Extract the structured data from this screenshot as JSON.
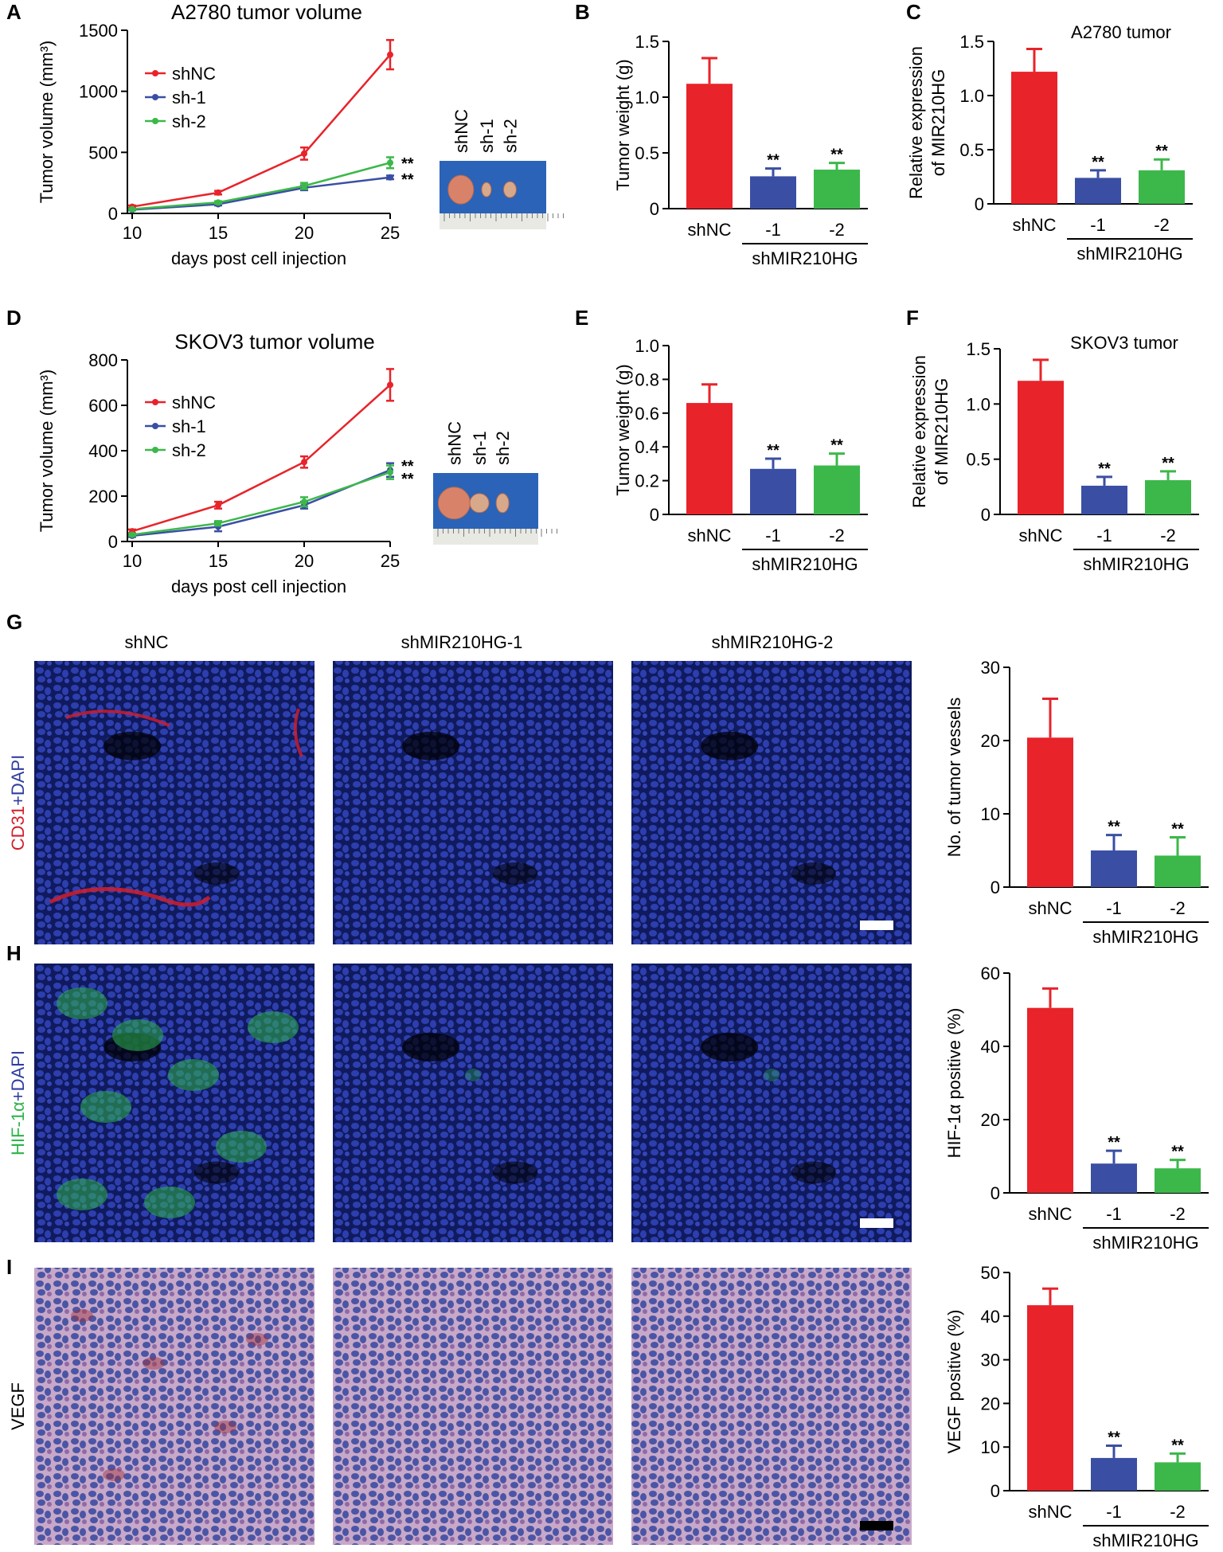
{
  "colors": {
    "shNC": "#e8232a",
    "sh1": "#3a4fa3",
    "sh2": "#3cb84a",
    "cd31": "#d21e2c",
    "hif": "#2db34a",
    "dapi": "#2f3da0"
  },
  "figure": {
    "panels": {
      "A": "A",
      "B": "B",
      "C": "C",
      "D": "D",
      "E": "E",
      "F": "F",
      "G": "G",
      "H": "H",
      "I": "I"
    },
    "tumor_photo_labels": [
      "shNC",
      "sh-1",
      "sh-2"
    ],
    "micro_column_titles": [
      "shNC",
      "shMIR210HG-1",
      "shMIR210HG-2"
    ],
    "micro_row_labels": {
      "G": [
        {
          "text": "CD31",
          "color": "#d21e2c"
        },
        {
          "text": "+DAPI",
          "color": "#2f3da0"
        }
      ],
      "H": [
        {
          "text": "HIF-1α",
          "color": "#2db34a"
        },
        {
          "text": "+DAPI",
          "color": "#2f3da0"
        }
      ],
      "I": [
        {
          "text": "VEGF",
          "color": "#000000"
        }
      ]
    },
    "micro_image_types": [
      "fluorescence-cd31",
      "fluorescence-hif",
      "ihc-vegf"
    ]
  },
  "chart_data": [
    {
      "panel": "A",
      "type": "line",
      "title": "A2780 tumor volume",
      "xlabel": "days post cell injection",
      "ylabel": "Tumor volume (mm³)",
      "x": [
        10,
        15,
        20,
        25
      ],
      "xticks": [
        "10",
        "15",
        "20",
        "25"
      ],
      "ylim": [
        0,
        1500
      ],
      "yticks": [
        "0",
        "500",
        "1000",
        "1500"
      ],
      "series": [
        {
          "name": "shNC",
          "color": "#e8232a",
          "values": [
            55,
            170,
            490,
            1300
          ],
          "errors": [
            10,
            15,
            50,
            120
          ]
        },
        {
          "name": "sh-1",
          "color": "#3a4fa3",
          "values": [
            30,
            75,
            210,
            295
          ],
          "errors": [
            5,
            10,
            20,
            15
          ]
        },
        {
          "name": "sh-2",
          "color": "#3cb84a",
          "values": [
            35,
            90,
            225,
            415
          ],
          "errors": [
            5,
            10,
            25,
            45
          ]
        }
      ],
      "significance": [
        "**",
        "**"
      ]
    },
    {
      "panel": "B",
      "type": "bar",
      "ylabel": "Tumor weight (g)",
      "ylim": [
        0,
        1.5
      ],
      "yticks": [
        "0",
        "0.5",
        "1.0",
        "1.5"
      ],
      "categories": [
        "shNC",
        "-1",
        "-2"
      ],
      "group_label": "shMIR210HG",
      "values": [
        1.12,
        0.29,
        0.35
      ],
      "errors": [
        0.23,
        0.07,
        0.06
      ],
      "significance": [
        "",
        "**",
        "**"
      ]
    },
    {
      "panel": "C",
      "type": "bar",
      "title": "A2780 tumor",
      "ylabel": [
        "Relative expression",
        "of MIR210HG"
      ],
      "ylim": [
        0,
        1.5
      ],
      "yticks": [
        "0",
        "0.5",
        "1.0",
        "1.5"
      ],
      "categories": [
        "shNC",
        "-1",
        "-2"
      ],
      "group_label": "shMIR210HG",
      "values": [
        1.22,
        0.24,
        0.31
      ],
      "errors": [
        0.21,
        0.07,
        0.1
      ],
      "significance": [
        "",
        "**",
        "**"
      ]
    },
    {
      "panel": "D",
      "type": "line",
      "title": "SKOV3 tumor volume",
      "xlabel": "days post cell injection",
      "ylabel": "Tumor volume (mm³)",
      "x": [
        10,
        15,
        20,
        25
      ],
      "xticks": [
        "10",
        "15",
        "20",
        "25"
      ],
      "ylim": [
        0,
        800
      ],
      "yticks": [
        "0",
        "200",
        "400",
        "600",
        "800"
      ],
      "series": [
        {
          "name": "shNC",
          "color": "#e8232a",
          "values": [
            45,
            160,
            350,
            690
          ],
          "errors": [
            8,
            15,
            25,
            70
          ]
        },
        {
          "name": "sh-1",
          "color": "#3a4fa3",
          "values": [
            25,
            65,
            160,
            315
          ],
          "errors": [
            5,
            20,
            15,
            30
          ]
        },
        {
          "name": "sh-2",
          "color": "#3cb84a",
          "values": [
            30,
            80,
            175,
            305
          ],
          "errors": [
            5,
            10,
            20,
            30
          ]
        }
      ],
      "significance": [
        "**",
        "**"
      ]
    },
    {
      "panel": "E",
      "type": "bar",
      "ylabel": "Tumor weight (g)",
      "ylim": [
        0,
        1.0
      ],
      "yticks": [
        "0",
        "0.2",
        "0.4",
        "0.6",
        "0.8",
        "1.0"
      ],
      "categories": [
        "shNC",
        "-1",
        "-2"
      ],
      "group_label": "shMIR210HG",
      "values": [
        0.66,
        0.27,
        0.29
      ],
      "errors": [
        0.11,
        0.06,
        0.07
      ],
      "significance": [
        "",
        "**",
        "**"
      ]
    },
    {
      "panel": "F",
      "type": "bar",
      "title": "SKOV3 tumor",
      "ylabel": [
        "Relative expression",
        "of MIR210HG"
      ],
      "ylim": [
        0,
        1.5
      ],
      "yticks": [
        "0",
        "0.5",
        "1.0",
        "1.5"
      ],
      "categories": [
        "shNC",
        "-1",
        "-2"
      ],
      "group_label": "shMIR210HG",
      "values": [
        1.21,
        0.26,
        0.31
      ],
      "errors": [
        0.19,
        0.08,
        0.08
      ],
      "significance": [
        "",
        "**",
        "**"
      ]
    },
    {
      "panel": "G",
      "type": "bar",
      "ylabel": "No. of tumor vessels",
      "ylim": [
        0,
        30
      ],
      "yticks": [
        "0",
        "10",
        "20",
        "30"
      ],
      "categories": [
        "shNC",
        "-1",
        "-2"
      ],
      "group_label": "shMIR210HG",
      "values": [
        20.4,
        5.0,
        4.3
      ],
      "errors": [
        5.3,
        2.1,
        2.5
      ],
      "significance": [
        "",
        "**",
        "**"
      ]
    },
    {
      "panel": "H",
      "type": "bar",
      "ylabel": "HIF-1α positive (%)",
      "ylim": [
        0,
        60
      ],
      "yticks": [
        "0",
        "20",
        "40",
        "60"
      ],
      "categories": [
        "shNC",
        "-1",
        "-2"
      ],
      "group_label": "shMIR210HG",
      "values": [
        50.5,
        8.0,
        6.7
      ],
      "errors": [
        5.3,
        3.5,
        2.3
      ],
      "significance": [
        "",
        "**",
        "**"
      ]
    },
    {
      "panel": "I",
      "type": "bar",
      "ylabel": "VEGF positive (%)",
      "ylim": [
        0,
        50
      ],
      "yticks": [
        "0",
        "10",
        "20",
        "30",
        "40",
        "50"
      ],
      "categories": [
        "shNC",
        "-1",
        "-2"
      ],
      "group_label": "shMIR210HG",
      "values": [
        42.5,
        7.5,
        6.5
      ],
      "errors": [
        3.8,
        2.8,
        2.0
      ],
      "significance": [
        "",
        "**",
        "**"
      ]
    }
  ]
}
